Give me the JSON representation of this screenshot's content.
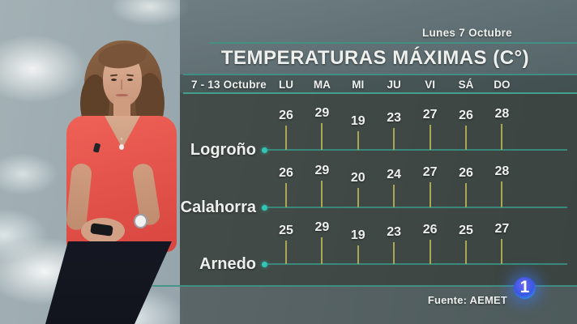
{
  "header": {
    "date_label": "Lunes 7 Octubre"
  },
  "panel": {
    "title": "TEMPERATURAS MÁXIMAS (C°)",
    "week_range": "7 - 13 Octubre",
    "day_headers": [
      "LU",
      "MA",
      "MI",
      "JU",
      "VI",
      "SÁ",
      "DO"
    ]
  },
  "chart_data": {
    "type": "bar",
    "title": "TEMPERATURAS MÁXIMAS (C°)",
    "subtitle": "7 - 13 Octubre",
    "categories": [
      "LU",
      "MA",
      "MI",
      "JU",
      "VI",
      "SÁ",
      "DO"
    ],
    "series": [
      {
        "name": "Logroño",
        "values": [
          26,
          29,
          19,
          23,
          27,
          26,
          28
        ]
      },
      {
        "name": "Calahorra",
        "values": [
          26,
          29,
          20,
          24,
          27,
          26,
          28
        ]
      },
      {
        "name": "Arnedo",
        "values": [
          25,
          29,
          19,
          23,
          26,
          25,
          27
        ]
      }
    ],
    "unit": "°C",
    "value_range": [
      19,
      29
    ],
    "layout": "three horizontal city rows, olive tick bars rising from teal baselines, value labels above ticks",
    "legend_position": "none",
    "grid": false
  },
  "footer": {
    "source": "Fuente: AEMET",
    "channel_logo_text": "1"
  },
  "colors": {
    "accent_teal_line": "#3f9386",
    "baseline_teal": "#38897b",
    "dot_teal": "#2fc6b4",
    "tick_olive": "#aaa754",
    "panel_dark": "#3d443f",
    "logo_blue": "#3a57e2",
    "shirt_red": "#e4544c",
    "text_white": "#eef0ee"
  }
}
